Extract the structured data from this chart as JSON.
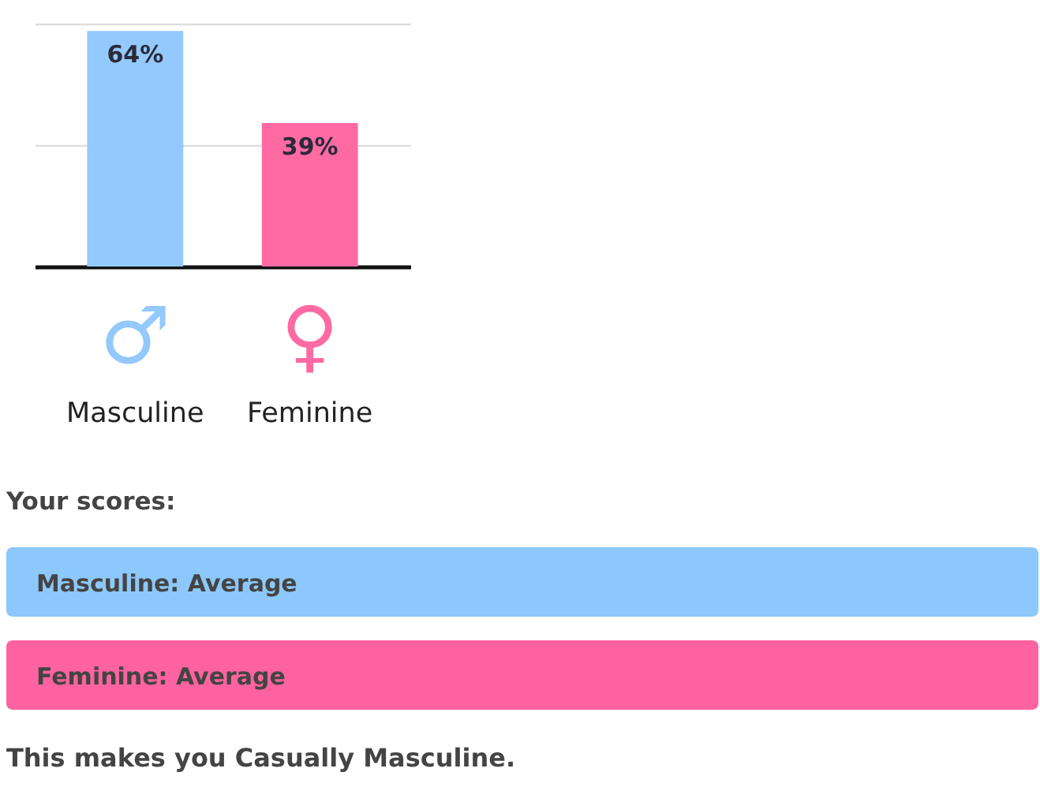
{
  "chart_data": [
    {
      "type": "bar",
      "categories": [
        "Masculine",
        "Feminine"
      ],
      "values": [
        64,
        39
      ],
      "colors": [
        "#93c9fc",
        "#ff6aa3"
      ],
      "value_labels": [
        "64%",
        "39%"
      ],
      "ylim": [
        0,
        66
      ],
      "yticks": [
        {
          "value": 33,
          "label": null
        },
        {
          "value": 66,
          "label": null
        }
      ],
      "grid": "y",
      "tick_labels": "x",
      "annotations": [
        "♂",
        "♀"
      ]
    },
    {
      "type": "other",
      "title": "Your scores:",
      "categories": [
        "Masculine: Average",
        "Feminine: Average"
      ],
      "colors": [
        "#8cc8fb",
        "#ff62a0"
      ],
      "annotations": [
        "This makes you Casually Masculine."
      ]
    }
  ]
}
